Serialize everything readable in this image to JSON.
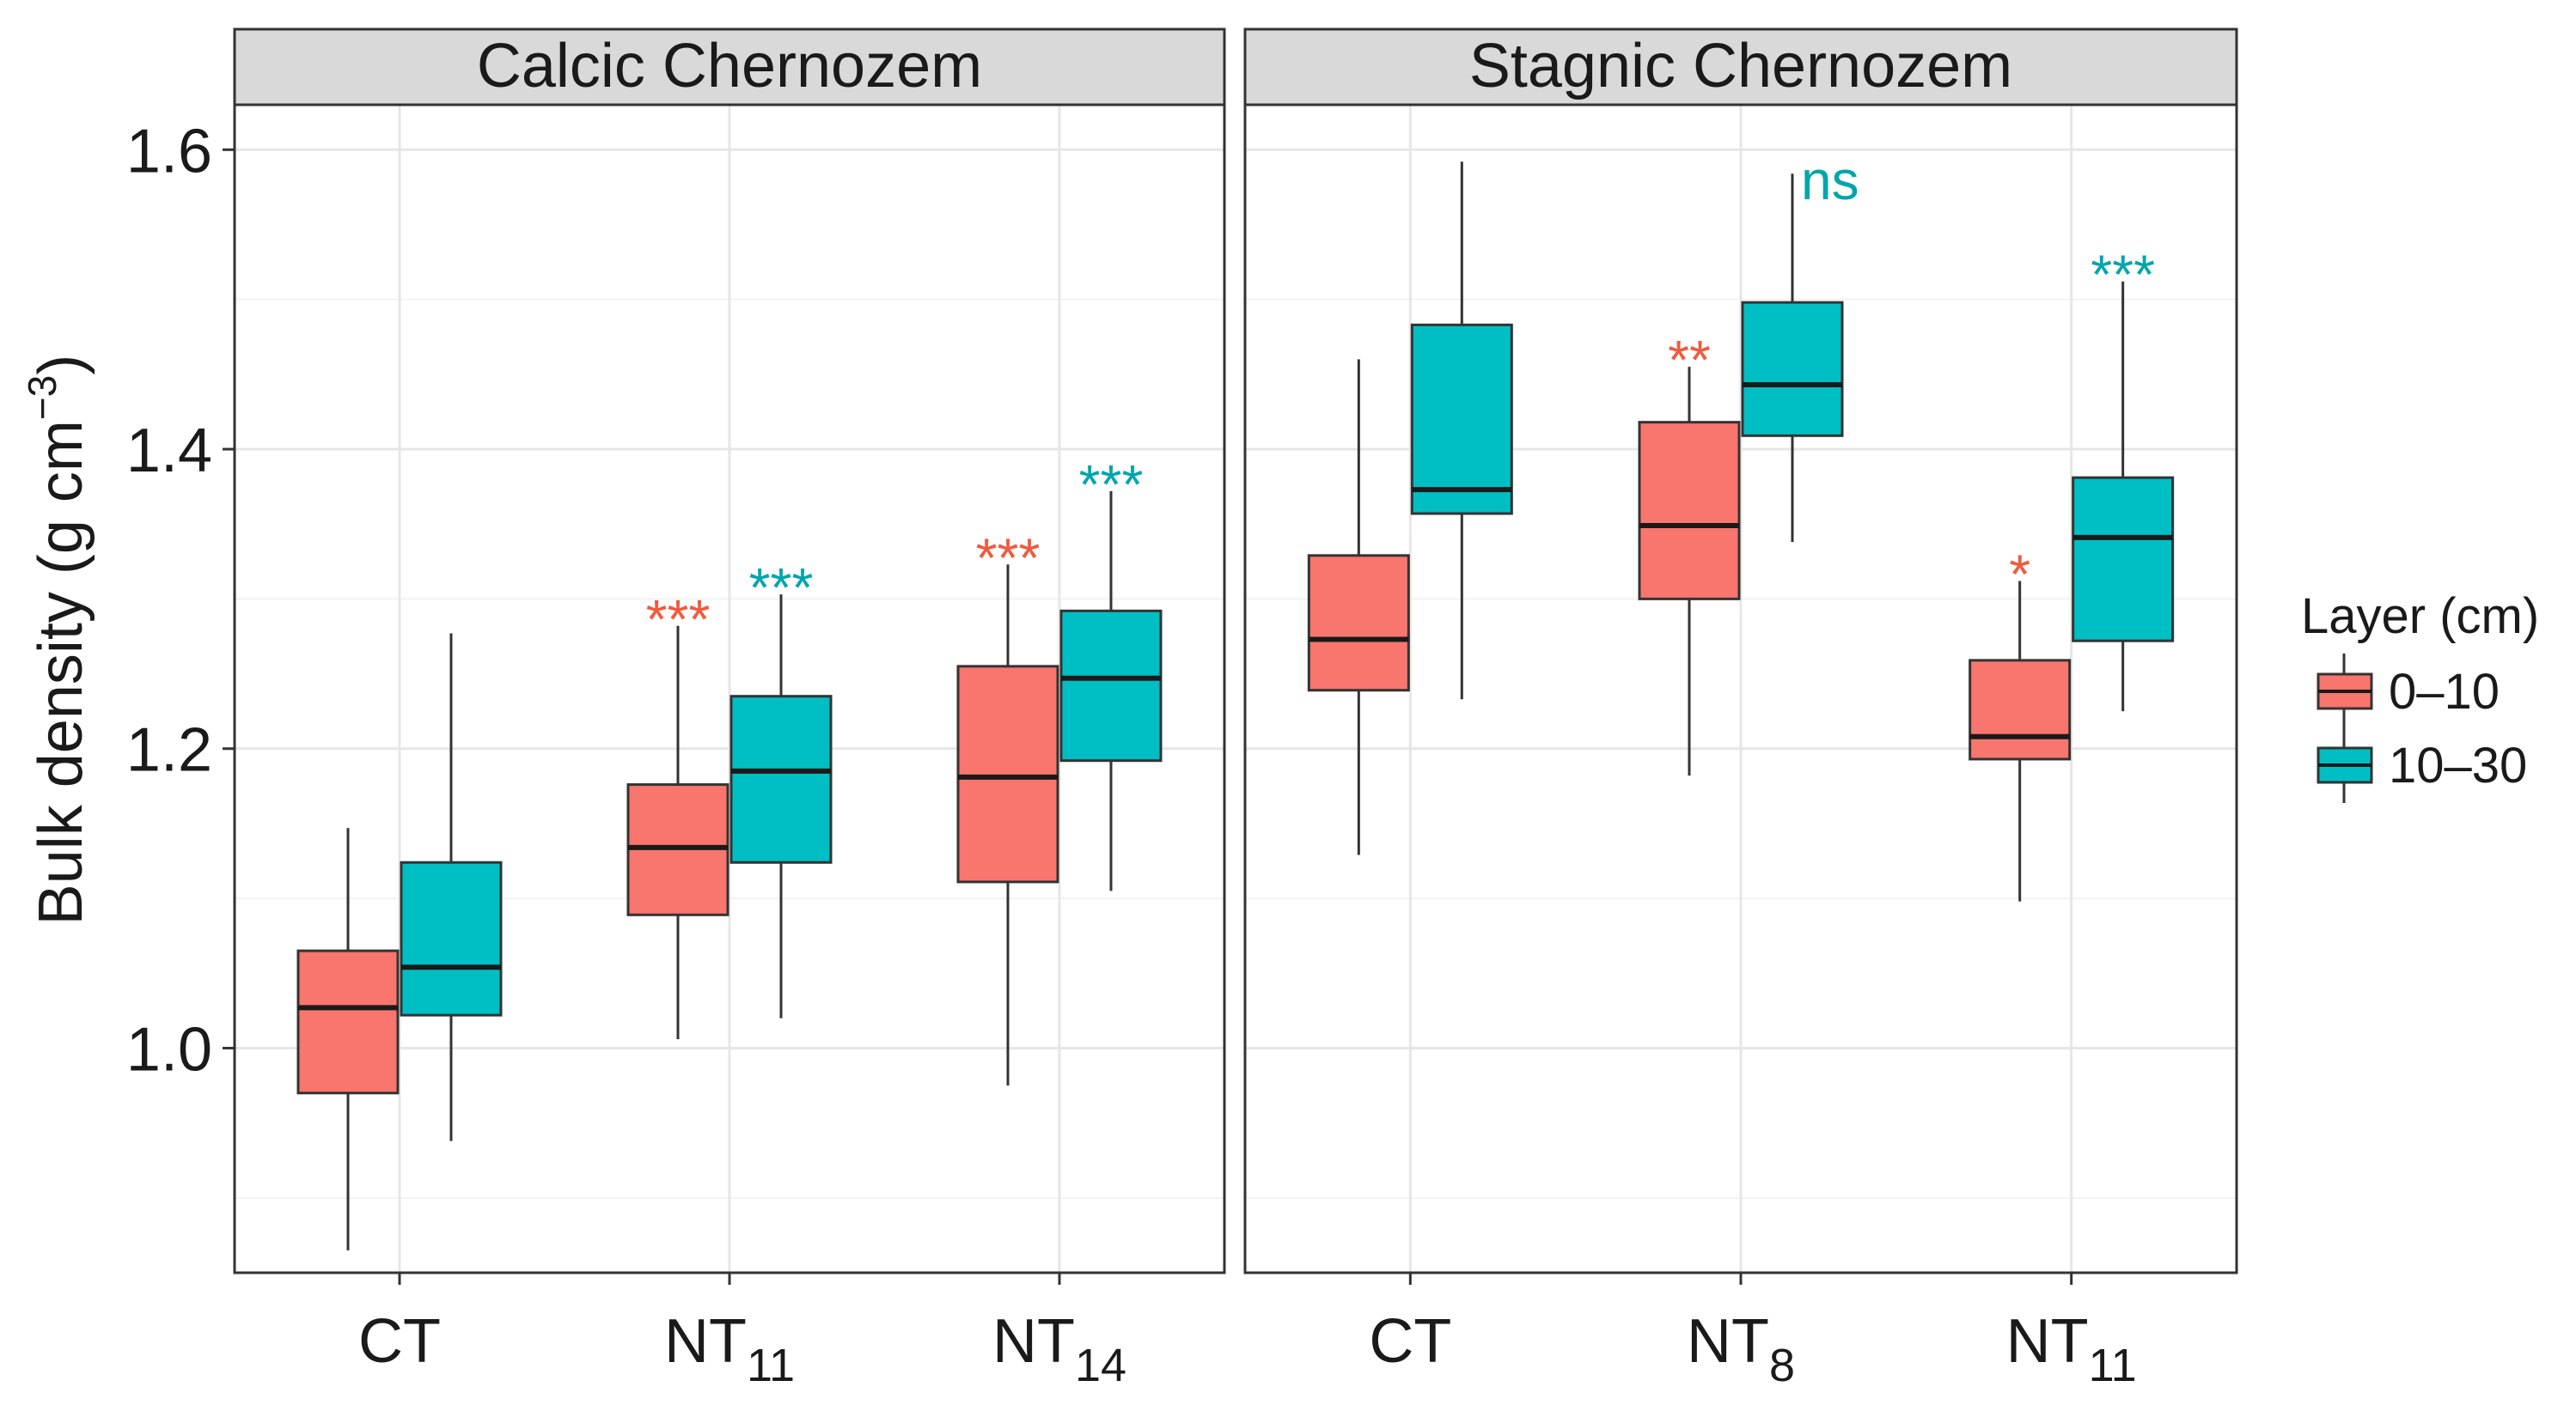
{
  "chart_data": {
    "type": "boxplot",
    "ylabel": "Bulk density (g cm−3)",
    "ylabel_base": "Bulk density (g cm",
    "ylabel_sup": "−3",
    "ylabel_close": ")",
    "ylim": [
      0.85,
      1.63
    ],
    "yticks": [
      1.0,
      1.2,
      1.4,
      1.6
    ],
    "ytick_labels": [
      "1.0",
      "1.2",
      "1.4",
      "1.6"
    ],
    "legend": {
      "title": "Layer (cm)",
      "items": [
        {
          "label": "0–10",
          "color": "#F8766D"
        },
        {
          "label": "10–30",
          "color": "#00BFC4"
        }
      ]
    },
    "colors": {
      "layer_0_10": "#F8766D",
      "layer_10_30": "#00BFC4",
      "annot_0_10": "#F05A3E",
      "annot_10_30": "#00A6AC"
    },
    "panels": [
      {
        "title": "Calcic Chernozem",
        "categories": [
          {
            "base": "CT",
            "sub": "",
            "layer_0_10": {
              "min": 0.865,
              "q1": 0.97,
              "median": 1.027,
              "q3": 1.065,
              "max": 1.147,
              "annot": ""
            },
            "layer_10_30": {
              "min": 0.938,
              "q1": 1.022,
              "median": 1.054,
              "q3": 1.124,
              "max": 1.277,
              "annot": ""
            }
          },
          {
            "base": "NT",
            "sub": "11",
            "layer_0_10": {
              "min": 1.006,
              "q1": 1.089,
              "median": 1.134,
              "q3": 1.176,
              "max": 1.282,
              "annot": "***"
            },
            "layer_10_30": {
              "min": 1.02,
              "q1": 1.124,
              "median": 1.185,
              "q3": 1.235,
              "max": 1.303,
              "annot": "***"
            }
          },
          {
            "base": "NT",
            "sub": "14",
            "layer_0_10": {
              "min": 0.975,
              "q1": 1.111,
              "median": 1.181,
              "q3": 1.255,
              "max": 1.323,
              "annot": "***"
            },
            "layer_10_30": {
              "min": 1.105,
              "q1": 1.192,
              "median": 1.247,
              "q3": 1.292,
              "max": 1.372,
              "annot": "***"
            }
          }
        ]
      },
      {
        "title": "Stagnic Chernozem",
        "categories": [
          {
            "base": "CT",
            "sub": "",
            "layer_0_10": {
              "min": 1.129,
              "q1": 1.239,
              "median": 1.273,
              "q3": 1.329,
              "max": 1.46,
              "annot": ""
            },
            "layer_10_30": {
              "min": 1.233,
              "q1": 1.357,
              "median": 1.373,
              "q3": 1.483,
              "max": 1.592,
              "annot": ""
            }
          },
          {
            "base": "NT",
            "sub": "8",
            "layer_0_10": {
              "min": 1.182,
              "q1": 1.3,
              "median": 1.349,
              "q3": 1.418,
              "max": 1.455,
              "annot": "**"
            },
            "layer_10_30": {
              "min": 1.338,
              "q1": 1.409,
              "median": 1.443,
              "q3": 1.498,
              "max": 1.584,
              "annot": "ns"
            }
          },
          {
            "base": "NT",
            "sub": "11",
            "layer_0_10": {
              "min": 1.098,
              "q1": 1.193,
              "median": 1.208,
              "q3": 1.259,
              "max": 1.312,
              "annot": "*"
            },
            "layer_10_30": {
              "min": 1.225,
              "q1": 1.272,
              "median": 1.341,
              "q3": 1.381,
              "max": 1.512,
              "annot": "***"
            }
          }
        ]
      }
    ]
  }
}
